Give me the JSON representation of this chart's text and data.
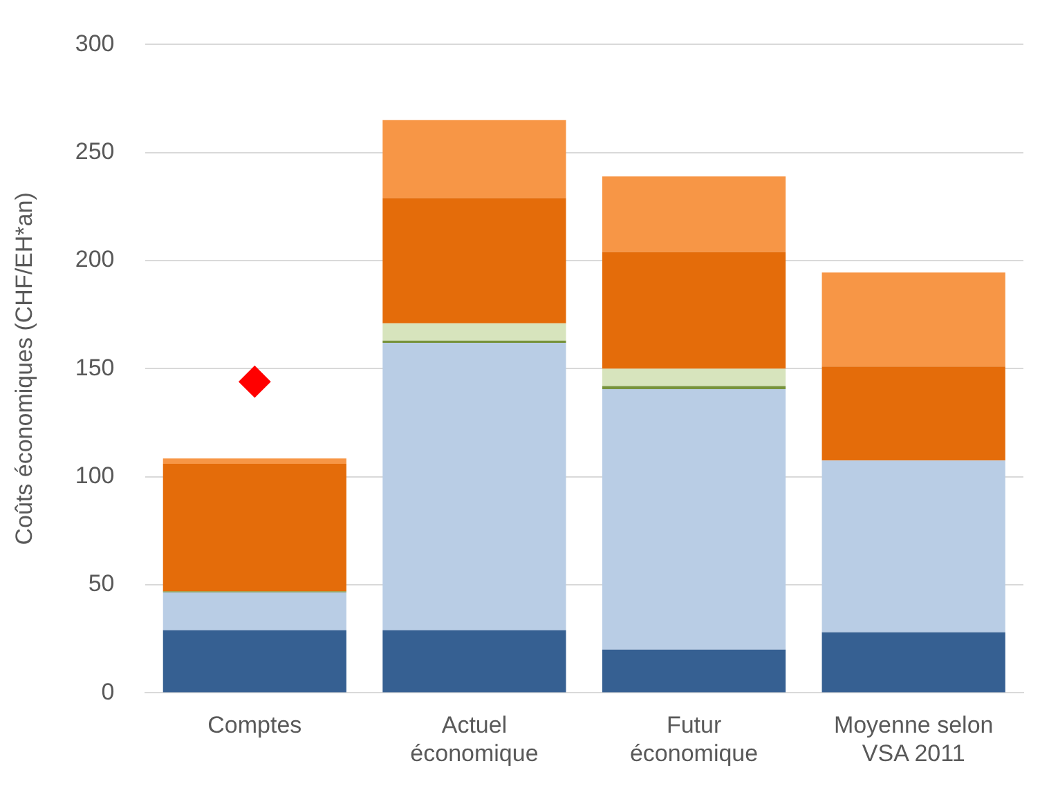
{
  "chart_data": {
    "type": "bar",
    "stacked": true,
    "ylabel": "Coûts économiques (CHF/EH*an)",
    "categories": [
      "Comptes",
      "Actuel\néconomique",
      "Futur\néconomique",
      "Moyenne selon\nVSA 2011"
    ],
    "series": [
      {
        "color": "#366092",
        "values": [
          29,
          29,
          20,
          28
        ]
      },
      {
        "color": "#b9cde5",
        "values": [
          17.5,
          133,
          120.5,
          79.5
        ]
      },
      {
        "color": "#77933c",
        "values": [
          0.5,
          1,
          1.5,
          0
        ]
      },
      {
        "color": "#d7e4bd",
        "values": [
          0,
          8,
          8,
          0
        ]
      },
      {
        "color": "#e46c0a",
        "values": [
          59,
          58,
          54,
          43.5
        ]
      },
      {
        "color": "#f79646",
        "values": [
          2.5,
          36,
          35,
          43.5
        ]
      },
      {
        "type": "scatter",
        "color": "#ff0000",
        "marker": "diamond",
        "x": [
          "Comptes"
        ],
        "values": [
          144
        ]
      }
    ],
    "ylim": [
      0,
      300
    ],
    "yticks": [
      0,
      50,
      100,
      150,
      200,
      250,
      300
    ],
    "grid": "y",
    "legend": false
  }
}
